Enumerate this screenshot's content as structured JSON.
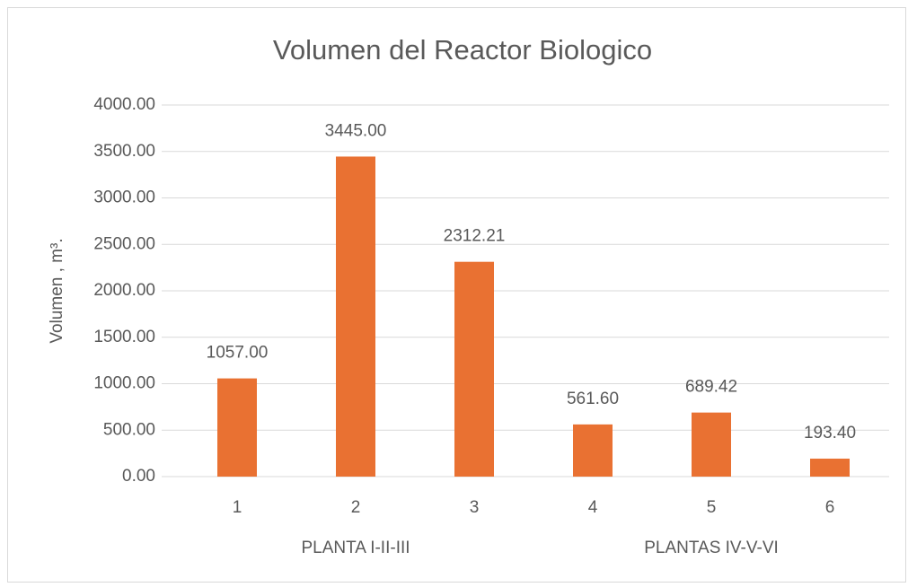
{
  "chart_data": {
    "type": "bar",
    "title": "Volumen del Reactor Biologico",
    "y_label": "Volumen , m³.",
    "categories": [
      "1",
      "2",
      "3",
      "4",
      "5",
      "6"
    ],
    "groups": [
      "PLANTA I-II-III",
      "PLANTAS IV-V-VI"
    ],
    "values": [
      1057,
      3445,
      2312.21,
      561.6,
      689.42,
      193.4
    ],
    "value_labels": [
      "1057.00",
      "3445.00",
      "2312.21",
      "561.60",
      "689.42",
      "193.40"
    ],
    "color": "#e97132",
    "ylim": [
      0,
      4000
    ],
    "yticks": [
      {
        "value": 0,
        "label": "0.00"
      },
      {
        "value": 500,
        "label": "500.00"
      },
      {
        "value": 1000,
        "label": "1000.00"
      },
      {
        "value": 1500,
        "label": "1500.00"
      },
      {
        "value": 2000,
        "label": "2000.00"
      },
      {
        "value": 2500,
        "label": "2500.00"
      },
      {
        "value": 3000,
        "label": "3000.00"
      },
      {
        "value": 3500,
        "label": "3500.00"
      },
      {
        "value": 4000,
        "label": "4000.00"
      }
    ],
    "grid": true
  }
}
